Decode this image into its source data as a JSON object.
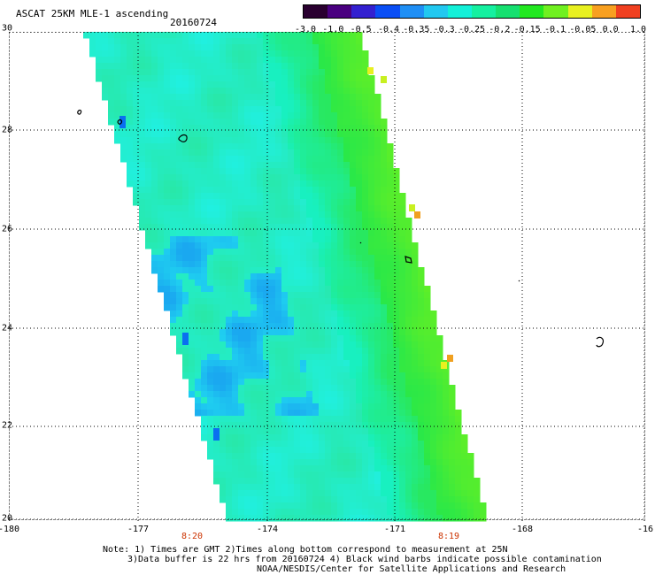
{
  "header": {
    "title": "ASCAT 25KM MLE-1 ascending",
    "date": "20160724"
  },
  "colorbar": {
    "labels": [
      "-3.0",
      "-1.0",
      "-0.5",
      "-0.4",
      "-0.35",
      "-0.3",
      "-0.25",
      "-0.2",
      "-0.15",
      "-0.1",
      "-0.05",
      "0.0",
      "1.0"
    ],
    "colors": [
      "#2a0030",
      "#4a0080",
      "#3320d0",
      "#0a4ef5",
      "#1f8ff5",
      "#22c8f0",
      "#13f0d8",
      "#15f0a0",
      "#16e070",
      "#22e820",
      "#70f020",
      "#e8f020",
      "#f8a020",
      "#f04020"
    ]
  },
  "axes": {
    "y_labels": [
      "30",
      "28",
      "26",
      "24",
      "22",
      "20"
    ],
    "x_labels": [
      "-180",
      "-177",
      "-174",
      "-171",
      "-168",
      "-16"
    ],
    "time_labels": [
      "8:20",
      "8:19"
    ]
  },
  "notes": {
    "line1": "Note: 1) Times are GMT 2)Times along bottom correspond to measurement at 25N",
    "line2": "3)Data buffer is 22 hrs from 20160724 4) Black wind barbs indicate possible contamination",
    "line3": "NOAA/NESDIS/Center for Satellite Applications and Research"
  }
}
